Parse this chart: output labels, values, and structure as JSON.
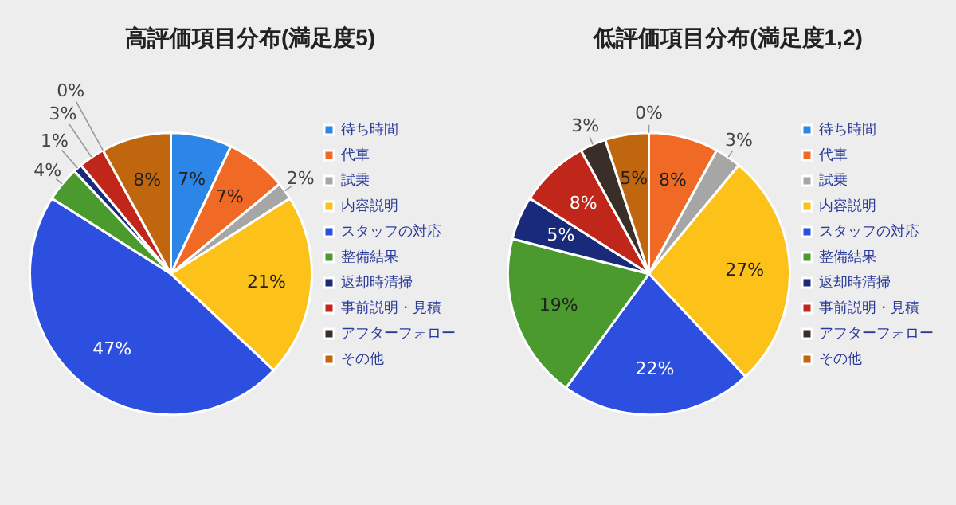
{
  "chart_data": [
    {
      "type": "pie",
      "title": "高評価項目分布(満足度5)",
      "categories": [
        "待ち時間",
        "代車",
        "試乗",
        "内容説明",
        "スタッフの対応",
        "整備結果",
        "返却時清掃",
        "事前説明・見積",
        "アフターフォロー",
        "その他"
      ],
      "values": [
        7,
        7,
        2,
        21,
        47,
        4,
        1,
        3,
        0,
        8
      ],
      "colors": [
        "#2b86e8",
        "#f06a25",
        "#a6a6a6",
        "#fcc21a",
        "#2d4fe0",
        "#4a9a2e",
        "#1a2a7a",
        "#c0261a",
        "#3a2e28",
        "#c0660f"
      ],
      "value_labels": [
        "7%",
        "7%",
        "2%",
        "21%",
        "47%",
        "4%",
        "1%",
        "3%",
        "0%",
        "8%"
      ],
      "legend": "right"
    },
    {
      "type": "pie",
      "title": "低評価項目分布(満足度1,2)",
      "categories": [
        "待ち時間",
        "代車",
        "試乗",
        "内容説明",
        "スタッフの対応",
        "整備結果",
        "返却時清掃",
        "事前説明・見積",
        "アフターフォロー",
        "その他"
      ],
      "values": [
        0,
        8,
        3,
        27,
        22,
        19,
        5,
        8,
        3,
        5
      ],
      "colors": [
        "#2b86e8",
        "#f06a25",
        "#a6a6a6",
        "#fcc21a",
        "#2d4fe0",
        "#4a9a2e",
        "#1a2a7a",
        "#c0261a",
        "#3a2e28",
        "#c0660f"
      ],
      "value_labels": [
        "0%",
        "8%",
        "3%",
        "27%",
        "22%",
        "19%",
        "5%",
        "8%",
        "3%",
        "5%"
      ],
      "legend": "right"
    }
  ]
}
